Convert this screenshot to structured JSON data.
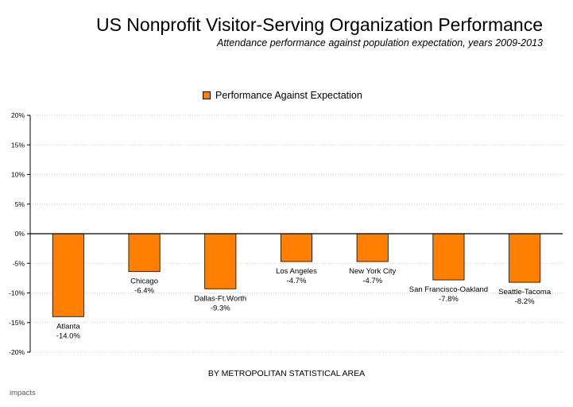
{
  "chart_data": {
    "type": "bar",
    "title": "US Nonprofit Visitor-Serving Organization Performance",
    "subtitle": "Attendance performance against population expectation, years 2009-2013",
    "xlabel": "BY METROPOLITAN STATISTICAL AREA",
    "ylabel": "",
    "ylim": [
      -20,
      20
    ],
    "yticks": [
      20,
      15,
      10,
      5,
      0,
      -5,
      -10,
      -15,
      -20
    ],
    "ytick_labels": [
      "20%",
      "15%",
      "10%",
      "5%",
      "0%",
      "-5%",
      "-10%",
      "-15%",
      "-20%"
    ],
    "grid": true,
    "legend": {
      "placement": "top-center",
      "entries": [
        "Performance Against Expectation"
      ]
    },
    "categories": [
      "Atlanta",
      "Chicago",
      "Dallas-Ft.Worth",
      "Los Angeles",
      "New York City",
      "San Francisco-Oakland",
      "Seattle-Tacoma"
    ],
    "series": [
      {
        "name": "Performance Against Expectation",
        "values": [
          -14.0,
          -6.4,
          -9.3,
          -4.7,
          -4.7,
          -7.8,
          -8.2
        ],
        "value_labels": [
          "-14.0%",
          "-6.4%",
          "-9.3%",
          "-4.7%",
          "-4.7%",
          "-7.8%",
          "-8.2%"
        ],
        "color": "#ff8000"
      }
    ]
  },
  "source": "impacts",
  "colors": {
    "bar": "#ff8000",
    "bar_border": "#000000",
    "grid": "#bdbdbd",
    "axis": "#000000"
  }
}
